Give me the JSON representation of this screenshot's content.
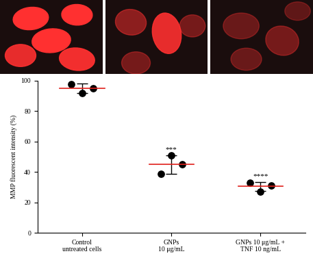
{
  "chart_data": {
    "type": "scatter",
    "y_label": "MMP fluorescent intensity (%)",
    "categories": [
      "Control\nuntreated cells",
      "GNPs\n10 μg/mL",
      "GNPs 10 μg/mL +\nTNF 10 ng/mL"
    ],
    "points": [
      [
        97.5,
        92,
        95
      ],
      [
        39,
        51,
        45
      ],
      [
        33,
        27,
        31
      ]
    ],
    "means": [
      95,
      45,
      30.5
    ],
    "errors": [
      3,
      6,
      3
    ],
    "annotations": [
      {
        "category": "GNPs\n10 μg/mL",
        "text": "***"
      },
      {
        "category": "GNPs 10 μg/mL +\nTNF 10 ng/mL",
        "text": "****"
      }
    ],
    "color": "#000000",
    "mean_color": "#e0201b",
    "ylim": [
      0,
      100
    ],
    "yticks": [
      0,
      20,
      40,
      60,
      80,
      100
    ],
    "grid": false
  }
}
